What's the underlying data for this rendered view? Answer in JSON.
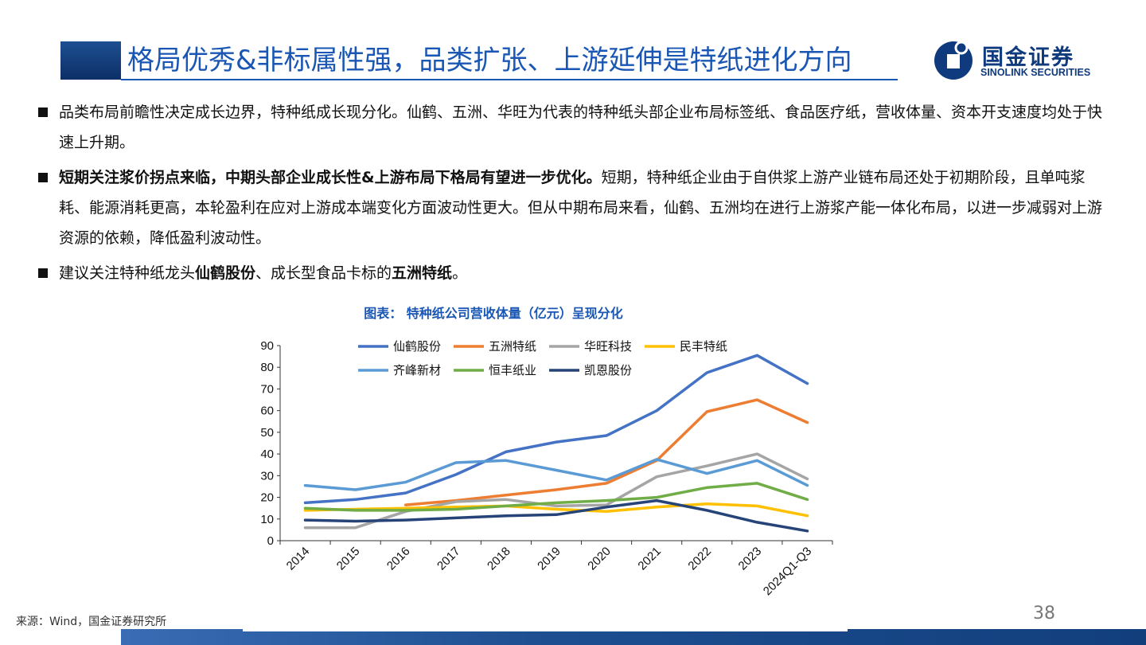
{
  "header": {
    "title": "格局优秀&非标属性强，品类扩张、上游延伸是特纸进化方向",
    "logo_cn": "国金证券",
    "logo_en": "SINOLINK SECURITIES"
  },
  "bullets": [
    {
      "bold": "",
      "text": "品类布局前瞻性决定成长边界，特种纸成长现分化。仙鹤、五洲、华旺为代表的特种纸头部企业布局标签纸、食品医疗纸，营收体量、资本开支速度均处于快速上升期。"
    },
    {
      "bold": "短期关注浆价拐点来临，中期头部企业成长性&上游布局下格局有望进一步优化。",
      "text": "短期，特种纸企业由于自供浆上游产业链布局还处于初期阶段，且单吨浆耗、能源消耗更高，本轮盈利在应对上游成本端变化方面波动性更大。但从中期布局来看，仙鹤、五洲均在进行上游浆产能一体化布局，以进一步减弱对上游资源的依赖，降低盈利波动性。"
    },
    {
      "pre": "建议关注特种纸龙头",
      "bold1": "仙鹤股份",
      "mid": "、成长型食品卡标的",
      "bold2": "五洲特纸",
      "end": "。"
    }
  ],
  "chart_caption": "图表： 特种纸公司营收体量（亿元）呈现分化",
  "chart_data": {
    "type": "line",
    "categories": [
      "2014",
      "2015",
      "2016",
      "2017",
      "2018",
      "2019",
      "2020",
      "2021",
      "2022",
      "2023",
      "2024Q1-Q3"
    ],
    "ylim": [
      0,
      90
    ],
    "yticks": [
      0,
      10,
      20,
      30,
      40,
      50,
      60,
      70,
      80,
      90
    ],
    "legend_placement": "top",
    "grid": false,
    "series": [
      {
        "name": "仙鹤股份",
        "color": "#4472c4",
        "values": [
          17.5,
          19,
          22,
          30.5,
          41,
          45.5,
          48.5,
          60,
          77.5,
          85.5,
          72.5
        ]
      },
      {
        "name": "五洲特纸",
        "color": "#ed7d31",
        "values": [
          null,
          null,
          16.5,
          18.5,
          21,
          23.5,
          26.5,
          37,
          59.5,
          65,
          54.5
        ]
      },
      {
        "name": "华旺科技",
        "color": "#a5a5a5",
        "values": [
          6,
          6,
          13.5,
          18,
          19,
          16,
          16.5,
          29.5,
          34.5,
          40,
          28.5
        ]
      },
      {
        "name": "民丰特纸",
        "color": "#ffc000",
        "values": [
          14,
          14.5,
          15,
          15.5,
          16,
          14.5,
          13.5,
          15.5,
          17,
          16,
          11.5
        ]
      },
      {
        "name": "齐峰新材",
        "color": "#5b9bd5",
        "values": [
          25.5,
          23.5,
          27,
          36,
          37,
          32.5,
          28,
          37.5,
          31,
          37,
          25.5
        ]
      },
      {
        "name": "恒丰纸业",
        "color": "#70ad47",
        "values": [
          15,
          14,
          14,
          14.5,
          16,
          17.5,
          18.5,
          20,
          24.5,
          26.5,
          19
        ]
      },
      {
        "name": "凯恩股份",
        "color": "#264478",
        "values": [
          9.5,
          9,
          9.5,
          10.5,
          11.5,
          12,
          15.5,
          18.5,
          14,
          8.5,
          4.5
        ]
      }
    ]
  },
  "source": "来源：Wind，国金证券研究所",
  "page_number": "38"
}
